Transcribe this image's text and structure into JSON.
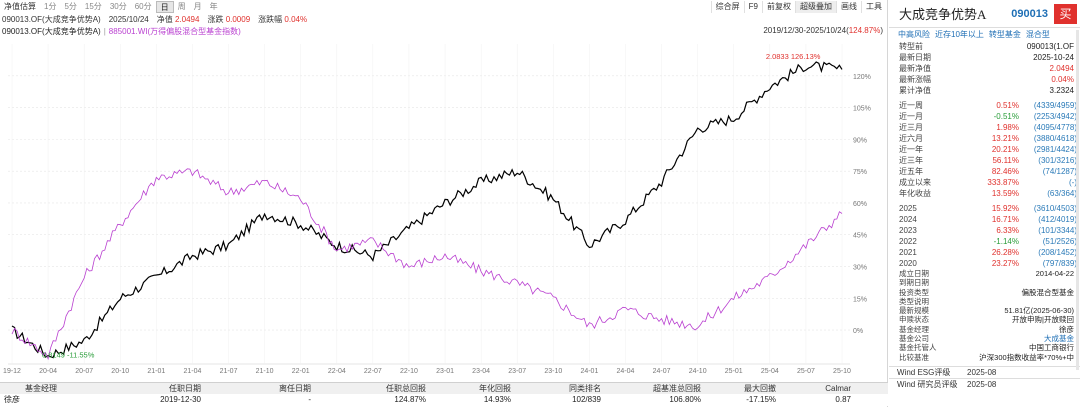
{
  "toolbar": {
    "left": [
      "净值估算",
      "1分",
      "5分",
      "15分",
      "30分",
      "60分",
      "日",
      "周",
      "月",
      "年"
    ],
    "active": "日",
    "right": [
      "综合屏",
      "F9",
      "前复权",
      "超级叠加",
      "画线",
      "工具"
    ]
  },
  "info": {
    "code": "090013.OF(大成竞争优势A)",
    "date": "2025/10/24",
    "nav_label": "净值",
    "nav": "2.0494",
    "chg_label": "涨跌",
    "chg": "0.0009",
    "pct_label": "涨跌幅",
    "pct": "0.04%"
  },
  "series_row": {
    "s1": "090013.OF(大成竞争优势A)",
    "s2": "885001.WI(万得偏股混合型基金指数)",
    "range": "2019/12/30-2025/10/24(",
    "range_pct": "124.87%",
    "range_end": ")"
  },
  "chart_data": {
    "type": "line",
    "x_labels": [
      "19-12",
      "20-04",
      "20-07",
      "20-10",
      "21-01",
      "21-04",
      "21-07",
      "21-10",
      "22-01",
      "22-04",
      "22-07",
      "22-10",
      "23-01",
      "23-04",
      "23-07",
      "23-10",
      "24-01",
      "24-04",
      "24-07",
      "24-10",
      "25-01",
      "25-04",
      "25-07",
      "25-10"
    ],
    "y_ticks": [
      "0%",
      "15%",
      "30%",
      "45%",
      "60%",
      "75%",
      "90%",
      "105%",
      "120%"
    ],
    "ylim": [
      -16,
      135
    ],
    "series": [
      {
        "name": "090013.OF(大成竞争优势A)",
        "color": "#000000",
        "values": [
          0,
          -12,
          -5,
          15,
          25,
          35,
          40,
          55,
          50,
          40,
          35,
          48,
          60,
          70,
          75,
          62,
          40,
          52,
          70,
          95,
          100,
          115,
          125,
          123
        ]
      },
      {
        "name": "885001.WI(万得偏股混合型基金指数)",
        "color": "#b93fd0",
        "values": [
          0,
          -12,
          25,
          50,
          72,
          75,
          65,
          70,
          62,
          38,
          42,
          30,
          35,
          28,
          22,
          15,
          2,
          10,
          5,
          2,
          15,
          25,
          40,
          55
        ]
      }
    ],
    "annotations": {
      "max_label": "2.0833 126.13%",
      "min_label": "0.8149 -11.55%"
    }
  },
  "table": {
    "headers": [
      "基金经理",
      "任职日期",
      "离任日期",
      "任职总回报",
      "年化回报",
      "同类排名",
      "超基准总回报",
      "最大回撤",
      "Calmar",
      ""
    ],
    "row": [
      "徐彦",
      "2019-12-30",
      "-",
      "124.87%",
      "14.93%",
      "102/839",
      "106.80%",
      "-17.15%",
      "0.87",
      ""
    ]
  },
  "side": {
    "name": "大成竞争优势A",
    "code": "090013",
    "buy": "买",
    "tags": [
      "中高风险",
      "近存10年以上",
      "转型基金",
      "混合型"
    ],
    "basic": [
      {
        "k": "转型前",
        "v": "090013(1.OF"
      },
      {
        "k": "最新日期",
        "v": "2025-10-24"
      },
      {
        "k": "最新净值",
        "v": "2.0494",
        "red": true
      },
      {
        "k": "最新涨幅",
        "v": "0.04%",
        "red": true
      },
      {
        "k": "累计净值",
        "v": "3.2324"
      }
    ],
    "perf": [
      {
        "k": "近一周",
        "v": "0.51%",
        "r": "(4339/4959)",
        "c": "red"
      },
      {
        "k": "近一月",
        "v": "-0.51%",
        "r": "(2253/4942)",
        "c": "green"
      },
      {
        "k": "近三月",
        "v": "1.98%",
        "r": "(4095/4778)",
        "c": "red"
      },
      {
        "k": "近六月",
        "v": "13.21%",
        "r": "(3880/4618)",
        "c": "red"
      },
      {
        "k": "近一年",
        "v": "20.21%",
        "r": "(2981/4424)",
        "c": "red"
      },
      {
        "k": "近三年",
        "v": "56.11%",
        "r": "(301/3216)",
        "c": "red"
      },
      {
        "k": "近五年",
        "v": "82.46%",
        "r": "(74/1287)",
        "c": "red"
      },
      {
        "k": "成立以来",
        "v": "333.87%",
        "r": "(-)",
        "c": "red"
      },
      {
        "k": "年化收益",
        "v": "13.59%",
        "r": "(63/364)",
        "c": "red"
      }
    ],
    "years": [
      {
        "k": "2025",
        "v": "15.92%",
        "r": "(3610/4503)",
        "c": "red"
      },
      {
        "k": "2024",
        "v": "16.71%",
        "r": "(412/4019)",
        "c": "red"
      },
      {
        "k": "2023",
        "v": "6.33%",
        "r": "(101/3344)",
        "c": "red"
      },
      {
        "k": "2022",
        "v": "-1.14%",
        "r": "(51/2526)",
        "c": "green"
      },
      {
        "k": "2021",
        "v": "26.28%",
        "r": "(208/1452)",
        "c": "red"
      },
      {
        "k": "2020",
        "v": "23.27%",
        "r": "(797/839)",
        "c": "red"
      }
    ],
    "details": [
      {
        "k": "成立日期",
        "v": "2014-04-22"
      },
      {
        "k": "到期日期",
        "v": ""
      },
      {
        "k": "投资类型",
        "v": "偏股混合型基金"
      },
      {
        "k": "类型说明",
        "v": ""
      },
      {
        "k": "最新规模",
        "v": "51.81亿(2025-06-30)"
      },
      {
        "k": "申赎状态",
        "v": "开放申购|开放赎回"
      },
      {
        "k": "基金经理",
        "v": "徐彦"
      },
      {
        "k": "基金公司",
        "v": "大成基金",
        "blue": true
      },
      {
        "k": "基金托管人",
        "v": "中国工商银行"
      },
      {
        "k": "比较基准",
        "v": "沪深300指数收益率*70%+中"
      }
    ],
    "esg": [
      {
        "k": "Wind ESG评级",
        "v": "2025-08"
      },
      {
        "k": "Wind 研究员评级",
        "v": "2025-08"
      }
    ]
  }
}
